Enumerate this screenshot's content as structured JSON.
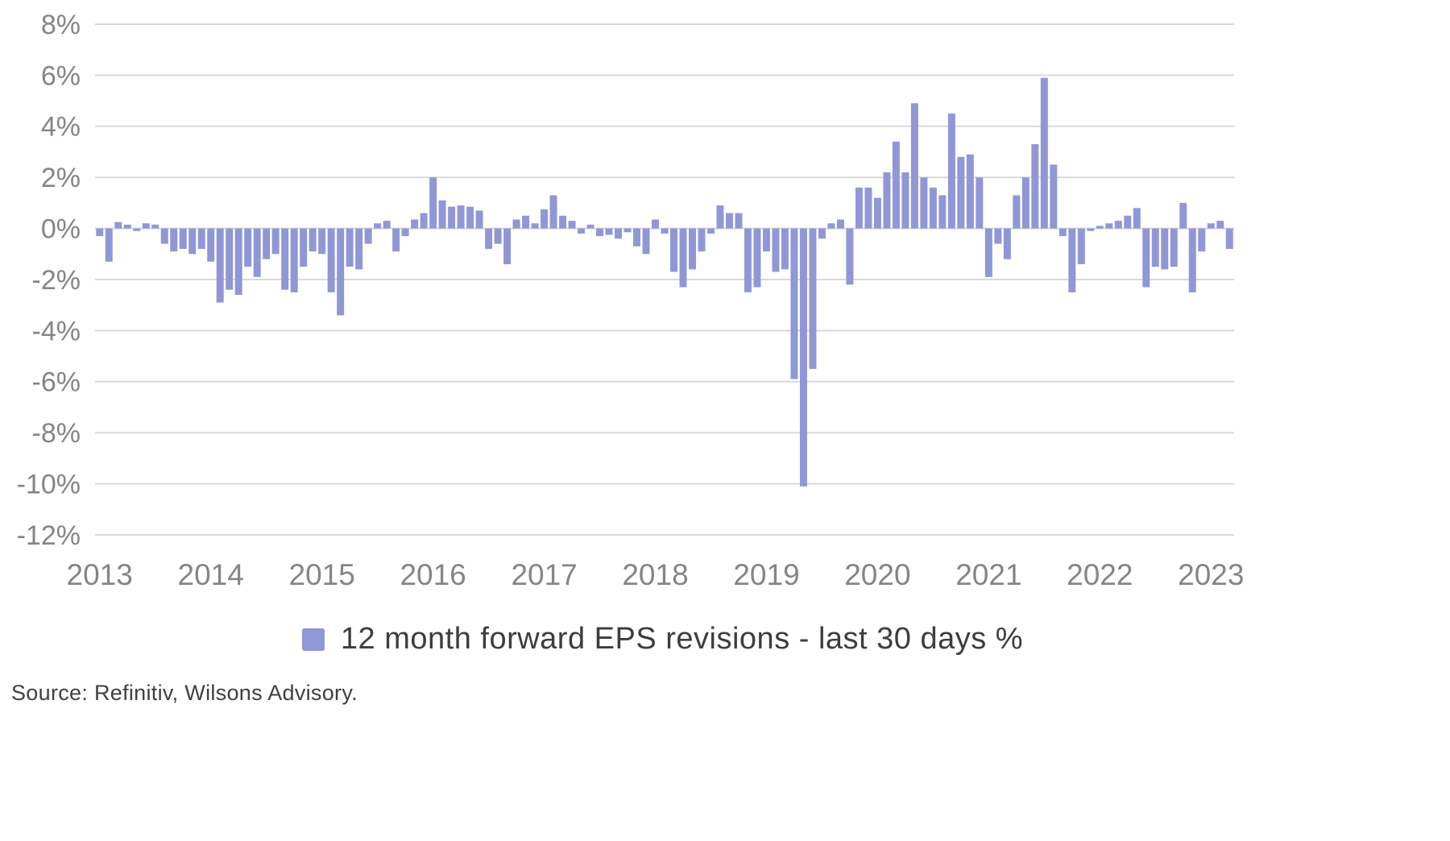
{
  "chart": {
    "legend_label": "12 month forward EPS revisions - last 30 days %",
    "source_text": "Source: Refinitiv, Wilsons Advisory.",
    "colors": {
      "bar": "#8f97d6",
      "gridline": "#d9d9d9",
      "axis_text": "#858585",
      "legend_text": "#3d3d3d"
    }
  },
  "chart_data": {
    "type": "bar",
    "title": "",
    "series_name": "12 month forward EPS revisions - last 30 days %",
    "frequency": "monthly",
    "x_start_year": 2013,
    "x_tick_labels": [
      "2013",
      "2014",
      "2015",
      "2016",
      "2017",
      "2018",
      "2019",
      "2020",
      "2021",
      "2022",
      "2023"
    ],
    "y_tick_labels": [
      "8%",
      "6%",
      "4%",
      "2%",
      "0%",
      "-2%",
      "-4%",
      "-6%",
      "-8%",
      "-10%",
      "-12%"
    ],
    "ylim": [
      -12,
      8
    ],
    "y_tick_step": 2,
    "grid": "horizontal",
    "legend_position": "bottom-center",
    "values_pct": [
      -0.3,
      -1.3,
      0.25,
      0.15,
      -0.1,
      0.2,
      0.15,
      -0.6,
      -0.9,
      -0.8,
      -1.0,
      -0.8,
      -1.3,
      -2.9,
      -2.4,
      -2.6,
      -1.5,
      -1.9,
      -1.2,
      -1.0,
      -2.4,
      -2.5,
      -1.5,
      -0.9,
      -1.0,
      -2.5,
      -3.4,
      -1.5,
      -1.6,
      -0.6,
      0.2,
      0.3,
      -0.9,
      -0.3,
      0.35,
      0.6,
      2.0,
      1.1,
      0.85,
      0.9,
      0.85,
      0.7,
      -0.8,
      -0.6,
      -1.4,
      0.35,
      0.5,
      0.2,
      0.75,
      1.3,
      0.5,
      0.3,
      -0.2,
      0.15,
      -0.3,
      -0.25,
      -0.4,
      -0.15,
      -0.7,
      -1.0,
      0.35,
      -0.2,
      -1.7,
      -2.3,
      -1.6,
      -0.9,
      -0.2,
      0.9,
      0.6,
      0.6,
      -2.5,
      -2.3,
      -0.9,
      -1.7,
      -1.6,
      -5.9,
      -10.1,
      -5.5,
      -0.4,
      0.2,
      0.35,
      -2.2,
      1.6,
      1.6,
      1.2,
      2.2,
      3.4,
      2.2,
      4.9,
      2.0,
      1.6,
      1.3,
      4.5,
      2.8,
      2.9,
      2.0,
      -1.9,
      -0.6,
      -1.2,
      1.3,
      2.0,
      3.3,
      5.9,
      2.5,
      -0.3,
      -2.5,
      -1.4,
      -0.1,
      0.1,
      0.2,
      0.3,
      0.5,
      0.8,
      -2.3,
      -1.5,
      -1.6,
      -1.5,
      1.0,
      -2.5,
      -0.9,
      0.2,
      0.3,
      -0.8
    ]
  }
}
